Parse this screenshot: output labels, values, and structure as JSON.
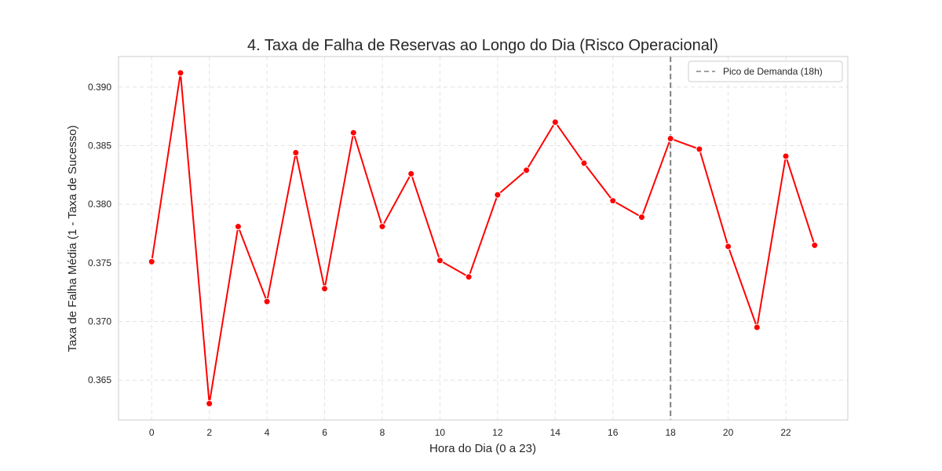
{
  "chart_data": {
    "type": "line",
    "title": "4. Taxa de Falha de Reservas ao Longo do Dia (Risco Operacional)",
    "xlabel": "Hora do Dia (0 a 23)",
    "ylabel": "Taxa de Falha Média (1 - Taxa de Sucesso)",
    "x": [
      0,
      1,
      2,
      3,
      4,
      5,
      6,
      7,
      8,
      9,
      10,
      11,
      12,
      13,
      14,
      15,
      16,
      17,
      18,
      19,
      20,
      21,
      22,
      23
    ],
    "series": [
      {
        "values": [
          0.3751,
          0.3912,
          0.363,
          0.3781,
          0.3717,
          0.3844,
          0.3728,
          0.3861,
          0.3781,
          0.3826,
          0.3752,
          0.3738,
          0.3808,
          0.3829,
          0.387,
          0.3835,
          0.3803,
          0.3789,
          0.3856,
          0.3847,
          0.3764,
          0.3695,
          0.3841,
          0.3765
        ],
        "color": "#ff0000"
      }
    ],
    "xticks": [
      "0",
      "2",
      "4",
      "6",
      "8",
      "10",
      "12",
      "14",
      "16",
      "18",
      "20",
      "22"
    ],
    "yticks": [
      "0.365",
      "0.370",
      "0.375",
      "0.380",
      "0.385",
      "0.390"
    ],
    "xlim": [
      -1.15,
      24.15
    ],
    "ylim": [
      0.3616,
      0.3926
    ],
    "grid": true,
    "reference_line": {
      "x": 18,
      "label": "Pico de Demanda (18h)",
      "color": "#808080",
      "style": "dashed"
    },
    "legend": {
      "position": "top-right",
      "entries": [
        "Pico de Demanda (18h)"
      ]
    }
  }
}
